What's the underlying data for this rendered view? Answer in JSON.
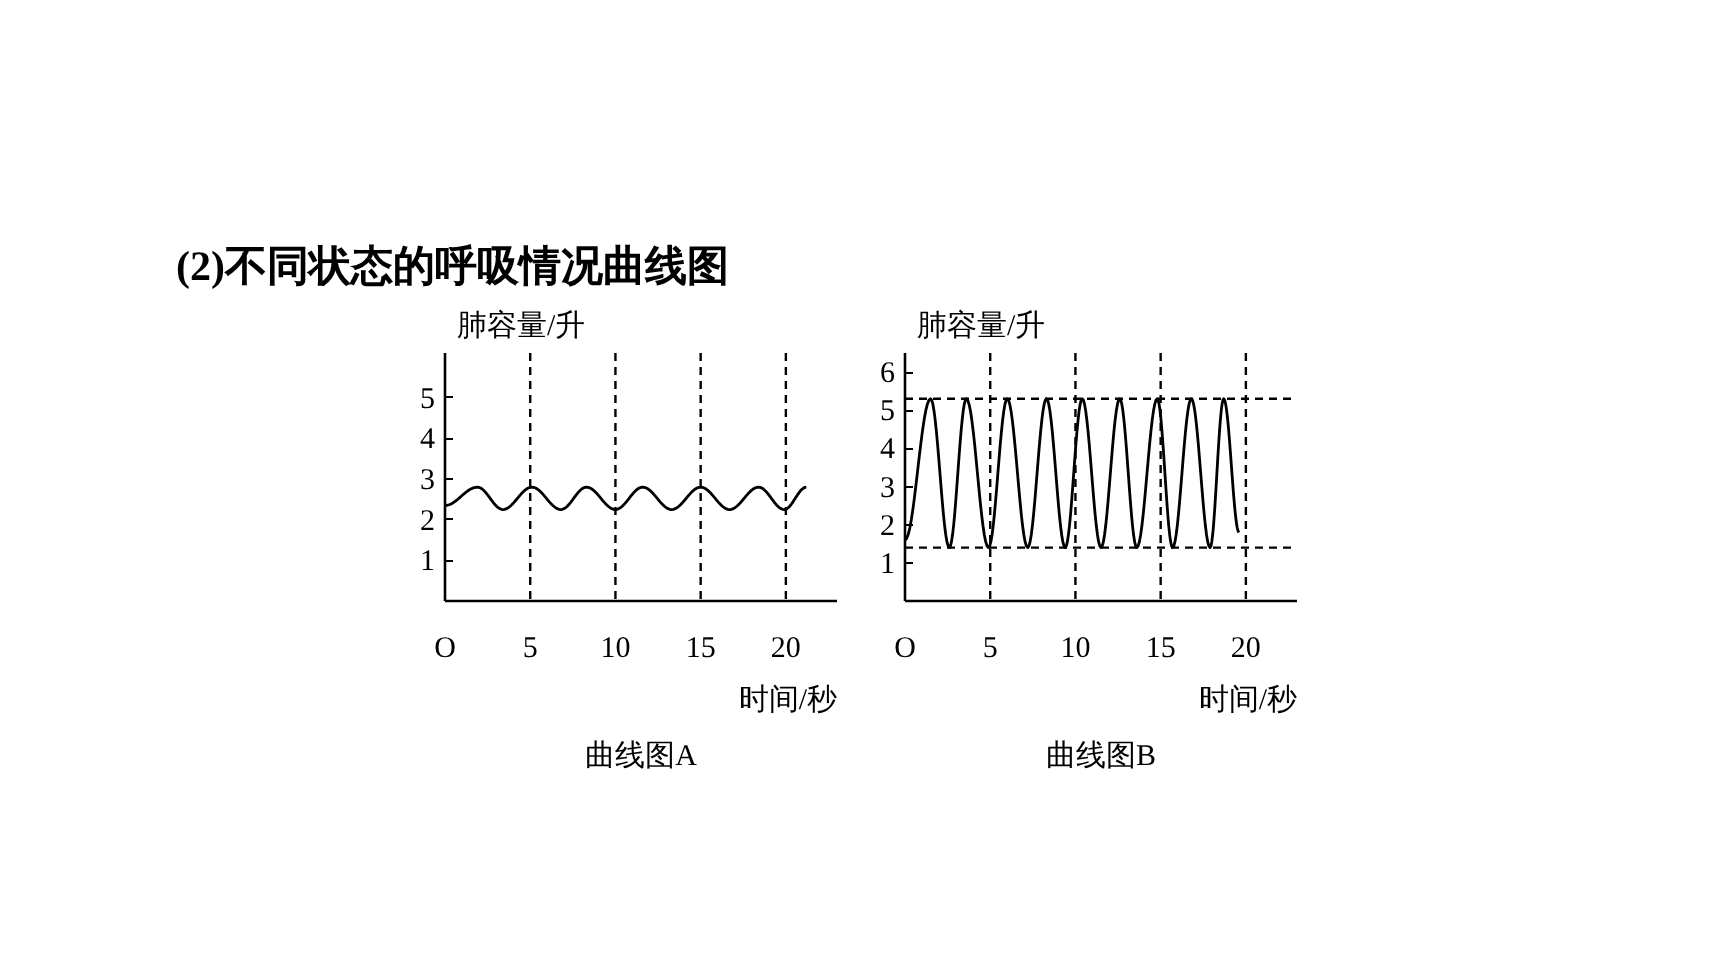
{
  "chart_data": [
    {
      "type": "line",
      "title": "曲线图A",
      "ylabel": "肺容量/升",
      "xlabel": "时间/秒",
      "annotations": [
        "(2)不同状态的呼吸情况曲线图"
      ],
      "grid": false,
      "line_style": "solid",
      "color": "#000000",
      "x": [
        0,
        1.9,
        3.4,
        5.1,
        6.8,
        8.3,
        10,
        11.6,
        13.3,
        15,
        16.7,
        18.4,
        19.9,
        21.2
      ],
      "values": [
        2.35,
        2.8,
        2.25,
        2.8,
        2.25,
        2.8,
        2.25,
        2.8,
        2.25,
        2.8,
        2.25,
        2.8,
        2.25,
        2.8
      ],
      "xlim": [
        0,
        23
      ],
      "ylim": [
        0,
        6.1
      ],
      "xticks": [
        {
          "value": 0,
          "label": "O"
        },
        5,
        10,
        15,
        20
      ],
      "yticks": [
        1,
        2,
        3,
        4,
        5
      ],
      "ref_lines": [
        {
          "axis": "x",
          "value": 5,
          "line_style": "dashed"
        },
        {
          "axis": "x",
          "value": 10,
          "line_style": "dashed"
        },
        {
          "axis": "x",
          "value": 15,
          "line_style": "dashed"
        },
        {
          "axis": "x",
          "value": 20,
          "line_style": "dashed"
        }
      ]
    },
    {
      "type": "line",
      "title": "曲线图B",
      "ylabel": "肺容量/升",
      "xlabel": "时间/秒",
      "grid": false,
      "line_style": "solid",
      "color": "#000000",
      "x": [
        0,
        1.5,
        2.6,
        3.6,
        4.9,
        6.0,
        7.2,
        8.3,
        9.4,
        10.4,
        11.5,
        12.6,
        13.6,
        14.8,
        15.7,
        16.8,
        17.9,
        18.7,
        19.6
      ],
      "values": [
        1.6,
        5.3,
        1.4,
        5.3,
        1.4,
        5.3,
        1.4,
        5.3,
        1.4,
        5.3,
        1.4,
        5.3,
        1.4,
        5.3,
        1.4,
        5.3,
        1.4,
        5.3,
        1.8
      ],
      "xlim": [
        0,
        23
      ],
      "ylim": [
        0,
        6.5
      ],
      "xticks": [
        {
          "value": 0,
          "label": "O"
        },
        5,
        10,
        15,
        20
      ],
      "yticks": [
        1,
        2,
        3,
        4,
        5,
        6
      ],
      "ref_lines": [
        {
          "axis": "x",
          "value": 5,
          "line_style": "dashed"
        },
        {
          "axis": "x",
          "value": 10,
          "line_style": "dashed"
        },
        {
          "axis": "x",
          "value": 15,
          "line_style": "dashed"
        },
        {
          "axis": "x",
          "value": 20,
          "line_style": "dashed"
        },
        {
          "axis": "y",
          "value": 5.3,
          "line_style": "dashed"
        },
        {
          "axis": "y",
          "value": 1.4,
          "line_style": "dashed"
        }
      ]
    }
  ]
}
